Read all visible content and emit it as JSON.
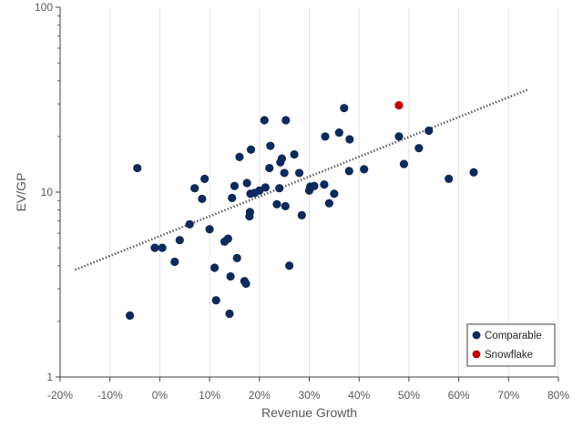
{
  "chart_data": {
    "type": "scatter",
    "title": "",
    "xlabel": "Revenue Growth",
    "ylabel": "EV/GP",
    "xlim": [
      -0.2,
      0.8
    ],
    "ylim": [
      1,
      100
    ],
    "y_scale": "log",
    "x_ticks": [
      -0.2,
      -0.1,
      0,
      0.1,
      0.2,
      0.3,
      0.4,
      0.5,
      0.6,
      0.7,
      0.8
    ],
    "x_tick_labels": [
      "-20%",
      "-10%",
      "0%",
      "10%",
      "20%",
      "30%",
      "40%",
      "50%",
      "60%",
      "70%",
      "80%"
    ],
    "y_ticks": [
      1,
      10,
      100
    ],
    "y_tick_labels": [
      "1",
      "10",
      "100"
    ],
    "grid": "vertical gridlines",
    "legend_position": "bottom-right",
    "trendline": {
      "style": "dotted",
      "color": "#595959",
      "x": [
        -0.17,
        0.74
      ],
      "y": [
        3.8,
        36
      ]
    },
    "series": [
      {
        "name": "Comparable",
        "color": "#0d2a5c",
        "points": [
          [
            -0.06,
            2.15
          ],
          [
            -0.045,
            13.5
          ],
          [
            -0.01,
            5.0
          ],
          [
            0.005,
            5.0
          ],
          [
            0.03,
            4.2
          ],
          [
            0.04,
            5.5
          ],
          [
            0.06,
            6.7
          ],
          [
            0.07,
            10.5
          ],
          [
            0.085,
            9.2
          ],
          [
            0.09,
            11.8
          ],
          [
            0.1,
            6.3
          ],
          [
            0.11,
            3.9
          ],
          [
            0.113,
            2.6
          ],
          [
            0.13,
            5.4
          ],
          [
            0.137,
            5.6
          ],
          [
            0.14,
            2.2
          ],
          [
            0.142,
            3.5
          ],
          [
            0.145,
            9.3
          ],
          [
            0.15,
            10.8
          ],
          [
            0.155,
            4.4
          ],
          [
            0.16,
            15.5
          ],
          [
            0.17,
            3.3
          ],
          [
            0.173,
            3.2
          ],
          [
            0.175,
            11.2
          ],
          [
            0.18,
            7.4
          ],
          [
            0.181,
            7.8
          ],
          [
            0.182,
            9.8
          ],
          [
            0.183,
            17.0
          ],
          [
            0.19,
            9.9
          ],
          [
            0.2,
            10.2
          ],
          [
            0.21,
            24.5
          ],
          [
            0.212,
            10.6
          ],
          [
            0.22,
            13.5
          ],
          [
            0.222,
            17.8
          ],
          [
            0.235,
            8.6
          ],
          [
            0.24,
            10.5
          ],
          [
            0.242,
            14.5
          ],
          [
            0.245,
            15.2
          ],
          [
            0.25,
            12.7
          ],
          [
            0.252,
            8.4
          ],
          [
            0.253,
            24.5
          ],
          [
            0.26,
            4.0
          ],
          [
            0.27,
            16.0
          ],
          [
            0.28,
            12.7
          ],
          [
            0.285,
            7.5
          ],
          [
            0.3,
            10.2
          ],
          [
            0.302,
            10.7
          ],
          [
            0.31,
            10.8
          ],
          [
            0.33,
            11.0
          ],
          [
            0.332,
            20.0
          ],
          [
            0.34,
            8.7
          ],
          [
            0.35,
            9.8
          ],
          [
            0.36,
            21.0
          ],
          [
            0.37,
            28.5
          ],
          [
            0.38,
            13.0
          ],
          [
            0.381,
            19.3
          ],
          [
            0.41,
            13.3
          ],
          [
            0.48,
            20.0
          ],
          [
            0.49,
            14.2
          ],
          [
            0.52,
            17.3
          ],
          [
            0.54,
            21.5
          ],
          [
            0.58,
            11.8
          ],
          [
            0.63,
            12.8
          ]
        ]
      },
      {
        "name": "Snowflake",
        "color": "#c00000",
        "points": [
          [
            0.48,
            29.5
          ]
        ]
      }
    ]
  }
}
